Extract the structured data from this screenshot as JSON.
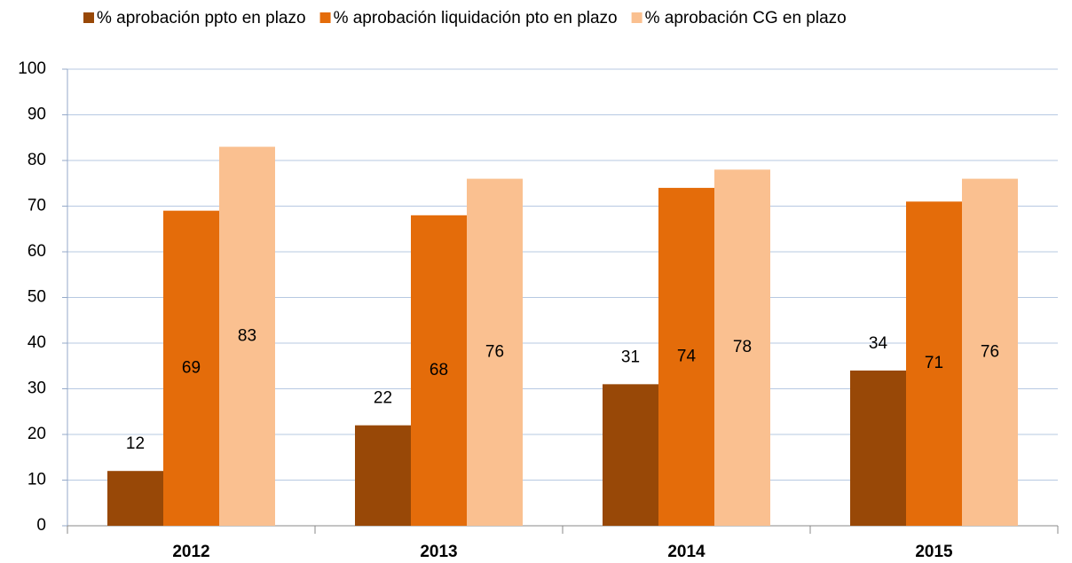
{
  "chart_data": {
    "type": "bar",
    "categories": [
      "2012",
      "2013",
      "2014",
      "2015"
    ],
    "series": [
      {
        "name": "% aprobación ppto en plazo",
        "color": "#984807",
        "values": [
          12,
          22,
          31,
          34
        ]
      },
      {
        "name": "% aprobación liquidación pto en plazo",
        "color": "#e46c0a",
        "values": [
          69,
          68,
          74,
          71
        ]
      },
      {
        "name": "% aprobación CG en plazo",
        "color": "#fac090",
        "values": [
          83,
          76,
          78,
          76
        ]
      }
    ],
    "ylim": [
      0,
      100
    ],
    "yticks": [
      0,
      10,
      20,
      30,
      40,
      50,
      60,
      70,
      80,
      90,
      100
    ],
    "grid": true,
    "legend": "top"
  }
}
